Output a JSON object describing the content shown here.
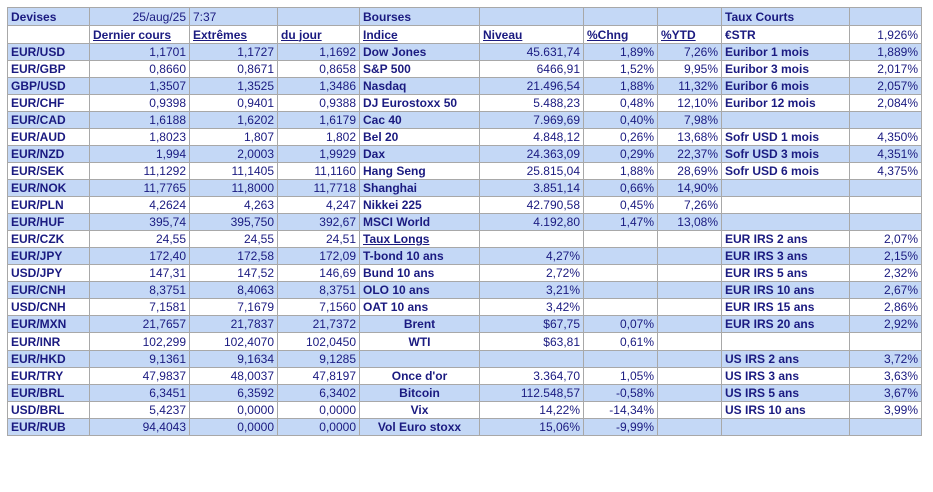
{
  "header": {
    "devises": "Devises",
    "date": "25/aug/25",
    "time": "7:37",
    "bourses": "Bourses",
    "taux_courts": "Taux Courts"
  },
  "subheader": {
    "dernier": "Dernier cours",
    "extremes": "Extrêmes",
    "dujour": "du jour",
    "indice": "Indice",
    "niveau": "Niveau",
    "chng": "%Chng",
    "ytd": "%YTD",
    "estr": "€STR",
    "estr_val": "1,926%"
  },
  "rows": [
    {
      "pair": "EUR/USD",
      "last": "1,1701",
      "high": "1,1727",
      "low": "1,1692",
      "idx": "Dow Jones",
      "lvl": "45.631,74",
      "chg": "1,89%",
      "ytd": "7,26%",
      "rate": "Euribor 1 mois",
      "rval": "1,889%"
    },
    {
      "pair": "EUR/GBP",
      "last": "0,8660",
      "high": "0,8671",
      "low": "0,8658",
      "idx": "S&P 500",
      "lvl": "6466,91",
      "chg": "1,52%",
      "ytd": "9,95%",
      "rate": "Euribor 3 mois",
      "rval": "2,017%"
    },
    {
      "pair": "GBP/USD",
      "last": "1,3507",
      "high": "1,3525",
      "low": "1,3486",
      "idx": "Nasdaq",
      "lvl": "21.496,54",
      "chg": "1,88%",
      "ytd": "11,32%",
      "rate": "Euribor 6 mois",
      "rval": "2,057%"
    },
    {
      "pair": "EUR/CHF",
      "last": "0,9398",
      "high": "0,9401",
      "low": "0,9388",
      "idx": "DJ Eurostoxx 50",
      "lvl": "5.488,23",
      "chg": "0,48%",
      "ytd": "12,10%",
      "rate": "Euribor 12 mois",
      "rval": "2,084%"
    },
    {
      "pair": "EUR/CAD",
      "last": "1,6188",
      "high": "1,6202",
      "low": "1,6179",
      "idx": "Cac 40",
      "lvl": "7.969,69",
      "chg": "0,40%",
      "ytd": "7,98%",
      "rate": "",
      "rval": ""
    },
    {
      "pair": "EUR/AUD",
      "last": "1,8023",
      "high": "1,807",
      "low": "1,802",
      "idx": "Bel 20",
      "lvl": "4.848,12",
      "chg": "0,26%",
      "ytd": "13,68%",
      "rate": "Sofr USD 1 mois",
      "rval": "4,350%"
    },
    {
      "pair": "EUR/NZD",
      "last": "1,994",
      "high": "2,0003",
      "low": "1,9929",
      "idx": "Dax",
      "lvl": "24.363,09",
      "chg": "0,29%",
      "ytd": "22,37%",
      "rate": "Sofr USD 3 mois",
      "rval": "4,351%"
    },
    {
      "pair": "EUR/SEK",
      "last": "11,1292",
      "high": "11,1405",
      "low": "11,1160",
      "idx": "Hang Seng",
      "lvl": "25.815,04",
      "chg": "1,88%",
      "ytd": "28,69%",
      "rate": "Sofr USD 6 mois",
      "rval": "4,375%"
    },
    {
      "pair": "EUR/NOK",
      "last": "11,7765",
      "high": "11,8000",
      "low": "11,7718",
      "idx": "Shanghai",
      "lvl": "3.851,14",
      "chg": "0,66%",
      "ytd": "14,90%",
      "rate": "",
      "rval": ""
    },
    {
      "pair": "EUR/PLN",
      "last": "4,2624",
      "high": "4,263",
      "low": "4,247",
      "idx": "Nikkei 225",
      "lvl": "42.790,58",
      "chg": "0,45%",
      "ytd": "7,26%",
      "rate": "",
      "rval": ""
    },
    {
      "pair": "EUR/HUF",
      "last": "395,74",
      "high": "395,750",
      "low": "392,67",
      "idx": "MSCI World",
      "lvl": "4.192,80",
      "chg": "1,47%",
      "ytd": "13,08%",
      "rate": "",
      "rval": ""
    },
    {
      "pair": "EUR/CZK",
      "last": "24,55",
      "high": "24,55",
      "low": "24,51",
      "idx": "Taux Longs",
      "lvl": "",
      "chg": "",
      "ytd": "",
      "rate": "EUR IRS 2 ans",
      "rval": "2,07%"
    },
    {
      "pair": "EUR/JPY",
      "last": "172,40",
      "high": "172,58",
      "low": "172,09",
      "idx": "T-bond 10 ans",
      "lvl": "4,27%",
      "chg": "",
      "ytd": "",
      "rate": "EUR IRS 3 ans",
      "rval": "2,15%"
    },
    {
      "pair": "USD/JPY",
      "last": "147,31",
      "high": "147,52",
      "low": "146,69",
      "idx": "Bund 10 ans",
      "lvl": "2,72%",
      "chg": "",
      "ytd": "",
      "rate": "EUR IRS 5 ans",
      "rval": "2,32%"
    },
    {
      "pair": "EUR/CNH",
      "last": "8,3751",
      "high": "8,4063",
      "low": "8,3751",
      "idx": "OLO 10 ans",
      "lvl": "3,21%",
      "chg": "",
      "ytd": "",
      "rate": "EUR IRS 10 ans",
      "rval": "2,67%"
    },
    {
      "pair": "USD/CNH",
      "last": "7,1581",
      "high": "7,1679",
      "low": "7,1560",
      "idx": "OAT 10 ans",
      "lvl": "3,42%",
      "chg": "",
      "ytd": "",
      "rate": "EUR IRS 15 ans",
      "rval": "2,86%"
    },
    {
      "pair": "EUR/MXN",
      "last": "21,7657",
      "high": "21,7837",
      "low": "21,7372",
      "idx": "Brent",
      "lvl": "$67,75",
      "chg": "0,07%",
      "ytd": "",
      "rate": "EUR IRS 20 ans",
      "rval": "2,92%"
    },
    {
      "pair": "EUR/INR",
      "last": "102,299",
      "high": "102,4070",
      "low": "102,0450",
      "idx": "WTI",
      "lvl": "$63,81",
      "chg": "0,61%",
      "ytd": "",
      "rate": "",
      "rval": ""
    },
    {
      "pair": "EUR/HKD",
      "last": "9,1361",
      "high": "9,1634",
      "low": "9,1285",
      "idx": "",
      "lvl": "",
      "chg": "",
      "ytd": "",
      "rate": "US IRS 2 ans",
      "rval": "3,72%"
    },
    {
      "pair": "EUR/TRY",
      "last": "47,9837",
      "high": "48,0037",
      "low": "47,8197",
      "idx": "Once d'or",
      "lvl": "3.364,70",
      "chg": "1,05%",
      "ytd": "",
      "rate": "US IRS 3 ans",
      "rval": "3,63%"
    },
    {
      "pair": "EUR/BRL",
      "last": "6,3451",
      "high": "6,3592",
      "low": "6,3402",
      "idx": "Bitcoin",
      "lvl": "112.548,57",
      "chg": "-0,58%",
      "ytd": "",
      "rate": "US IRS 5 ans",
      "rval": "3,67%"
    },
    {
      "pair": "USD/BRL",
      "last": "5,4237",
      "high": "0,0000",
      "low": "0,0000",
      "idx": "Vix",
      "lvl": "14,22%",
      "chg": "-14,34%",
      "ytd": "",
      "rate": "US IRS 10 ans",
      "rval": "3,99%"
    },
    {
      "pair": "EUR/RUB",
      "last": "94,4043",
      "high": "0,0000",
      "low": "0,0000",
      "idx": "Vol Euro stoxx",
      "lvl": "15,06%",
      "chg": "-9,99%",
      "ytd": "",
      "rate": "",
      "rval": ""
    }
  ]
}
